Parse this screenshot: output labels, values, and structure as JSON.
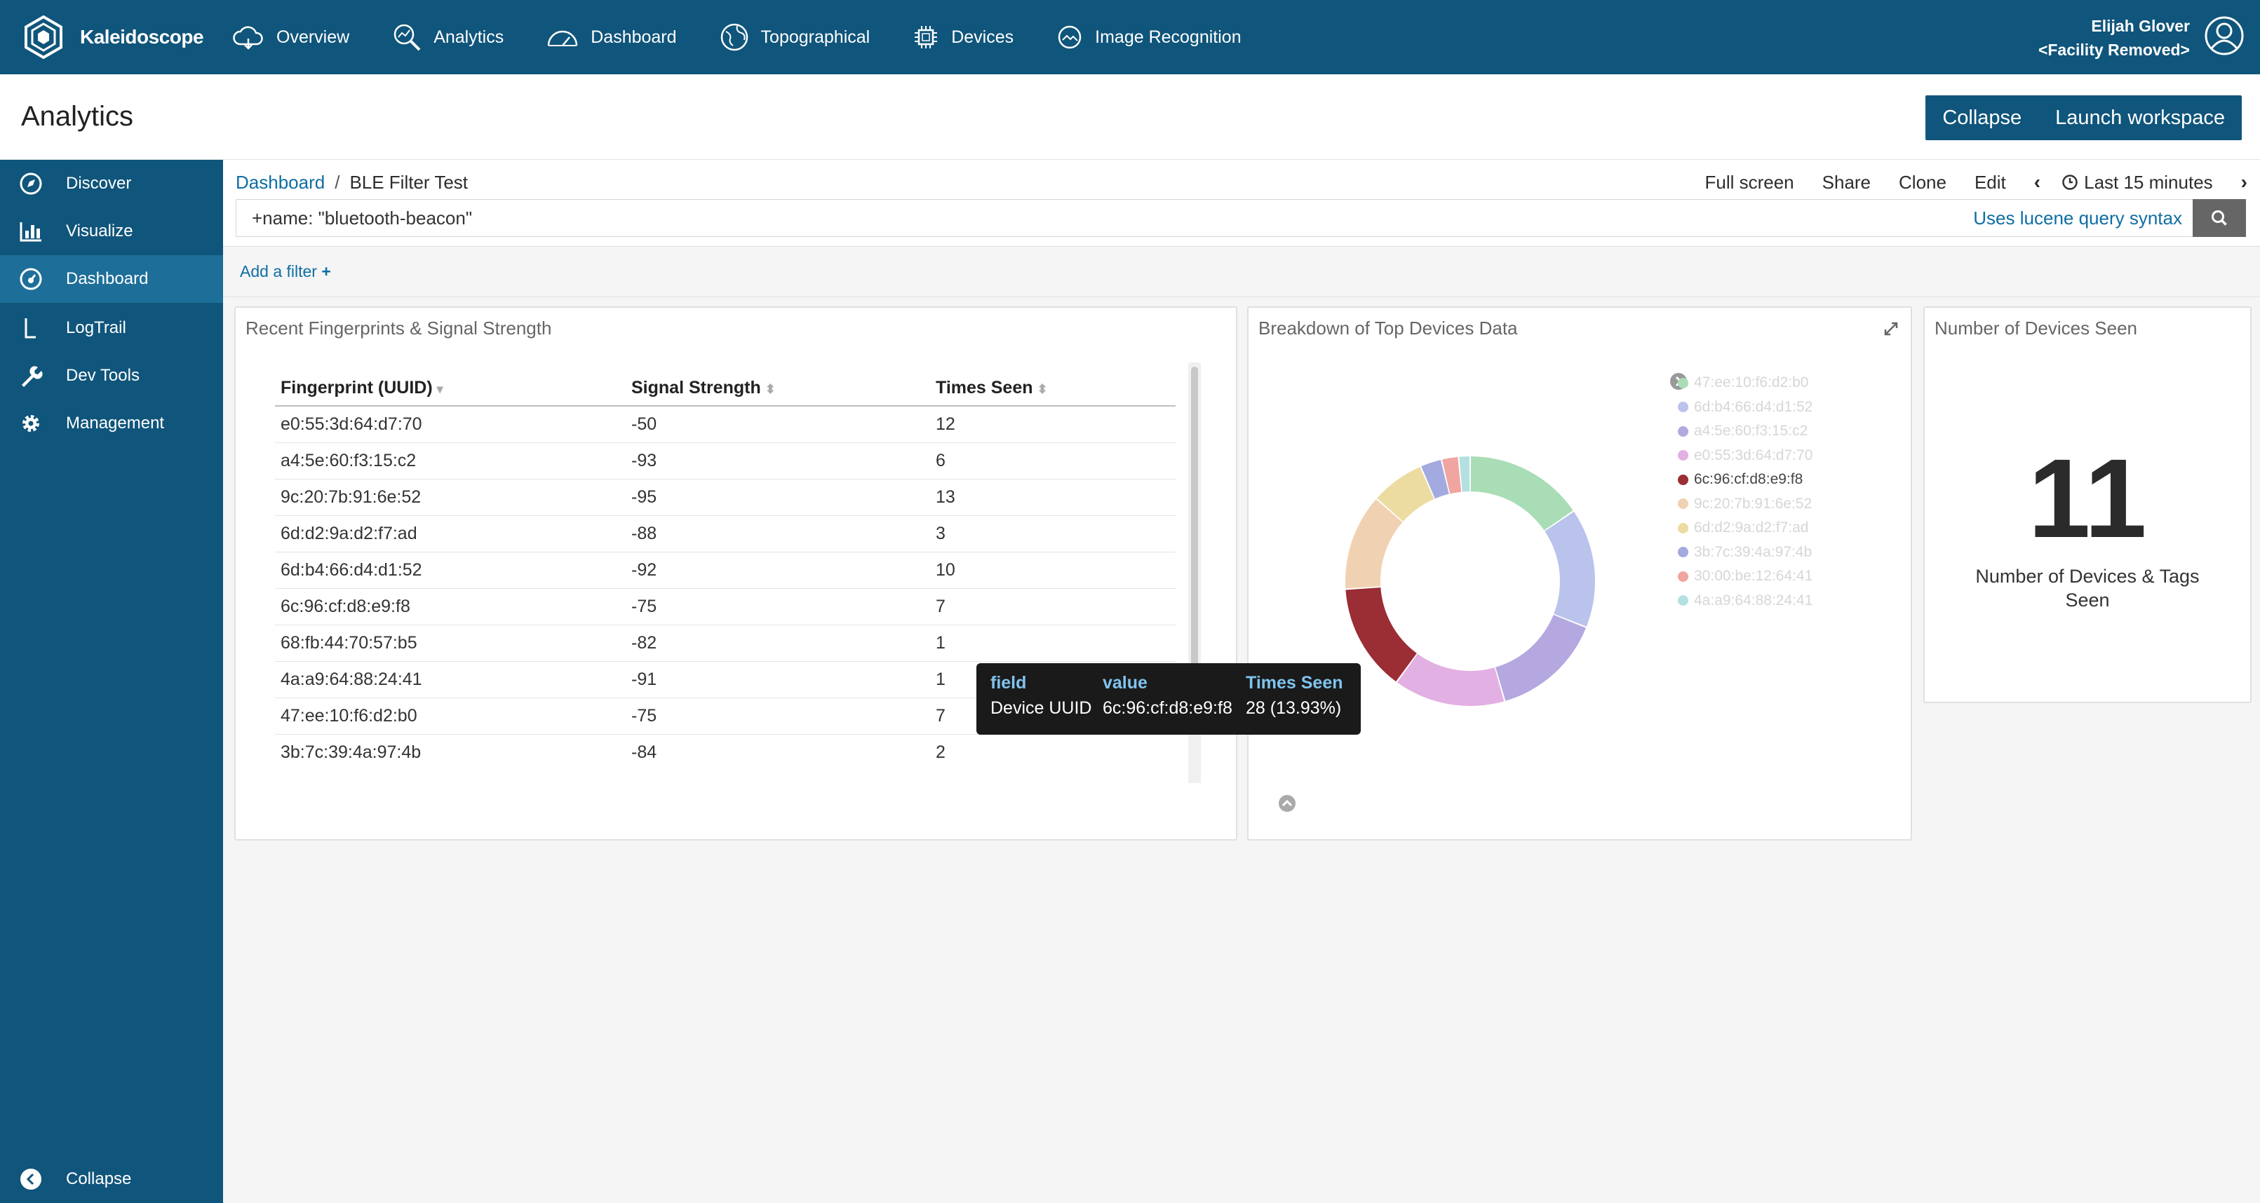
{
  "app": {
    "name": "Kaleidoscope"
  },
  "nav": [
    {
      "label": "Overview",
      "icon": "cloud-icon"
    },
    {
      "label": "Analytics",
      "icon": "analytics-search-icon"
    },
    {
      "label": "Dashboard",
      "icon": "gauge-icon"
    },
    {
      "label": "Topographical",
      "icon": "globe-icon"
    },
    {
      "label": "Devices",
      "icon": "chip-icon"
    },
    {
      "label": "Image Recognition",
      "icon": "image-recognition-icon"
    }
  ],
  "user": {
    "name": "Elijah Glover",
    "facility": "<Facility Removed>"
  },
  "page": {
    "title": "Analytics",
    "collapse": "Collapse",
    "launch": "Launch workspace"
  },
  "sidebar": [
    {
      "label": "Discover",
      "icon": "compass-icon"
    },
    {
      "label": "Visualize",
      "icon": "bar-chart-icon"
    },
    {
      "label": "Dashboard",
      "icon": "dashboard-icon"
    },
    {
      "label": "LogTrail",
      "icon": "logtrail-icon"
    },
    {
      "label": "Dev Tools",
      "icon": "wrench-icon"
    },
    {
      "label": "Management",
      "icon": "gear-icon"
    }
  ],
  "sidebar_collapse": "Collapse",
  "breadcrumb": {
    "root": "Dashboard",
    "separator": "/",
    "current": "BLE Filter Test"
  },
  "actions": {
    "fullscreen": "Full screen",
    "share": "Share",
    "clone": "Clone",
    "edit": "Edit",
    "time": "Last 15 minutes"
  },
  "query": {
    "value": "+name: \"bluetooth-beacon\"",
    "hint": "Uses lucene query syntax"
  },
  "filter": {
    "add": "Add a filter"
  },
  "table_panel": {
    "title": "Recent Fingerprints & Signal Strength",
    "columns": [
      "Fingerprint (UUID)",
      "Signal Strength",
      "Times Seen"
    ],
    "rows": [
      [
        "e0:55:3d:64:d7:70",
        "-50",
        "12"
      ],
      [
        "a4:5e:60:f3:15:c2",
        "-93",
        "6"
      ],
      [
        "9c:20:7b:91:6e:52",
        "-95",
        "13"
      ],
      [
        "6d:d2:9a:d2:f7:ad",
        "-88",
        "3"
      ],
      [
        "6d:b4:66:d4:d1:52",
        "-92",
        "10"
      ],
      [
        "6c:96:cf:d8:e9:f8",
        "-75",
        "7"
      ],
      [
        "68:fb:44:70:57:b5",
        "-82",
        "1"
      ],
      [
        "4a:a9:64:88:24:41",
        "-91",
        "1"
      ],
      [
        "47:ee:10:f6:d2:b0",
        "-75",
        "7"
      ],
      [
        "3b:7c:39:4a:97:4b",
        "-84",
        "2"
      ]
    ]
  },
  "tooltip": {
    "h1": "field",
    "h2": "value",
    "h3": "Times Seen",
    "v1": "Device UUID",
    "v2": "6c:96:cf:d8:e9:f8",
    "v3": "28 (13.93%)"
  },
  "donut_panel": {
    "title": "Breakdown of Top Devices Data",
    "legend": [
      {
        "label": "47:ee:10:f6:d2:b0",
        "color": "#a8ddb5"
      },
      {
        "label": "6d:b4:66:d4:d1:52",
        "color": "#b9c3ec"
      },
      {
        "label": "a4:5e:60:f3:15:c2",
        "color": "#b5a8e0"
      },
      {
        "label": "e0:55:3d:64:d7:70",
        "color": "#e3b0e3"
      },
      {
        "label": "6c:96:cf:d8:e9:f8",
        "color": "#9b2d35"
      },
      {
        "label": "9c:20:7b:91:6e:52",
        "color": "#f0d2b2"
      },
      {
        "label": "6d:d2:9a:d2:f7:ad",
        "color": "#ecdca1"
      },
      {
        "label": "3b:7c:39:4a:97:4b",
        "color": "#a3aadf"
      },
      {
        "label": "30:00:be:12:64:41",
        "color": "#f0a5a0"
      },
      {
        "label": "4a:a9:64:88:24:41",
        "color": "#b4e0e2"
      }
    ],
    "highlighted": "6c:96:cf:d8:e9:f8"
  },
  "metric_panel": {
    "title": "Number of Devices Seen",
    "value": "11",
    "label": "Number of Devices & Tags Seen"
  },
  "chart_data": {
    "type": "pie",
    "categories": [
      "47:ee:10:f6:d2:b0",
      "6d:b4:66:d4:d1:52",
      "a4:5e:60:f3:15:c2",
      "e0:55:3d:64:d7:70",
      "6c:96:cf:d8:e9:f8",
      "9c:20:7b:91:6e:52",
      "6d:d2:9a:d2:f7:ad",
      "3b:7c:39:4a:97:4b",
      "30:00:be:12:64:41",
      "4a:a9:64:88:24:41"
    ],
    "values": [
      15.5,
      15.5,
      14.5,
      14.5,
      13.93,
      12.5,
      7.0,
      2.8,
      2.2,
      1.5
    ],
    "colors": [
      "#a8ddb5",
      "#b9c3ec",
      "#b5a8e0",
      "#e3b0e3",
      "#9b2d35",
      "#f0d2b2",
      "#ecdca1",
      "#a3aadf",
      "#f0a5a0",
      "#b4e0e2"
    ],
    "donut": true
  }
}
